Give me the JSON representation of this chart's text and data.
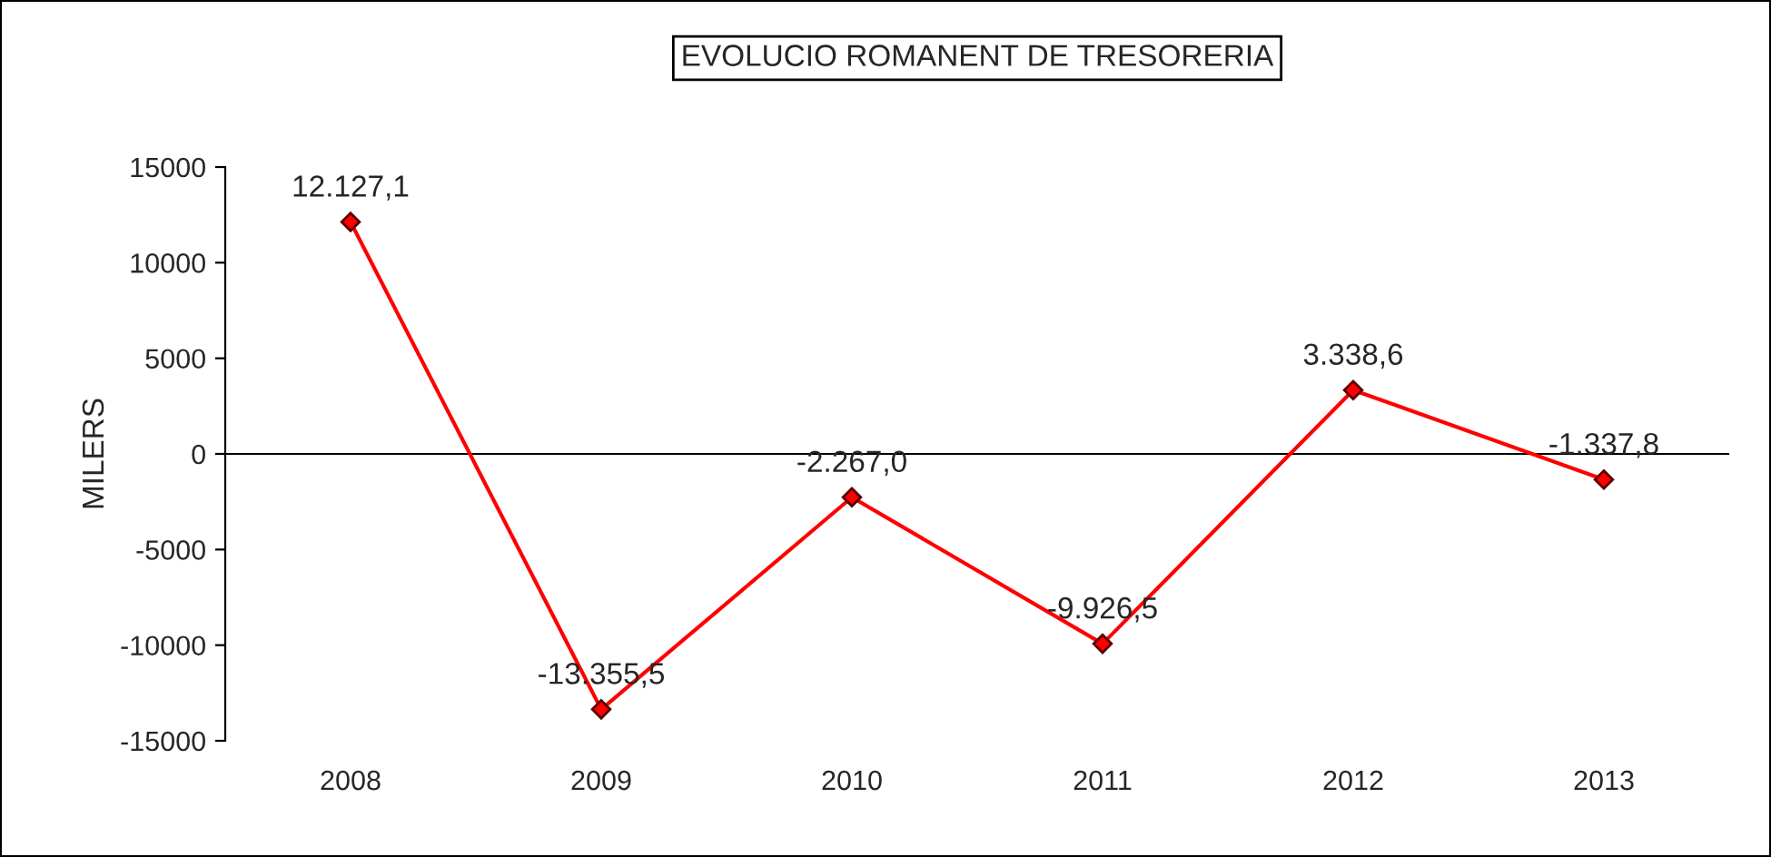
{
  "chart_data": {
    "type": "line",
    "title": "EVOLUCIO ROMANENT DE TRESORERIA",
    "ylabel": "MILERS",
    "categories": [
      "2008",
      "2009",
      "2010",
      "2011",
      "2012",
      "2013"
    ],
    "series": [
      {
        "color": "#ff0000",
        "values": [
          12127.1,
          -13355.5,
          -2267.0,
          -9926.5,
          3338.6,
          -1337.8
        ],
        "value_labels": [
          "12.127,1",
          "-13.355,5",
          "-2.267,0",
          "-9.926,5",
          "3.338,6",
          "-1.337,8"
        ]
      }
    ],
    "ylim": [
      -15000,
      15000
    ],
    "yticks": [
      -15000,
      -10000,
      -5000,
      0,
      5000,
      10000,
      15000
    ],
    "ref_lines": [
      {
        "axis": "y",
        "value": 0,
        "color": "#000000"
      }
    ],
    "grid": false,
    "legend": false,
    "marker": "diamond",
    "line_style": "solid"
  }
}
